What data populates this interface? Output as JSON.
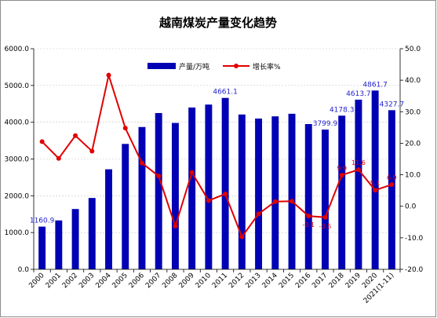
{
  "chart_data": {
    "type": "bar",
    "title": "越南煤炭产量变化趋势",
    "categories": [
      "2000",
      "2001",
      "2002",
      "2003",
      "2004",
      "2005",
      "2006",
      "2007",
      "2008",
      "2009",
      "2010",
      "2011",
      "2012",
      "2013",
      "2014",
      "2015",
      "2016",
      "2017",
      "2018",
      "2019",
      "2020",
      "2021(1-11)"
    ],
    "series": [
      {
        "name": "产量/万吨",
        "type": "bar",
        "axis": "left",
        "color": "#0000b4",
        "values": [
          1160.9,
          1330,
          1640,
          1940,
          2720,
          3410,
          3870,
          4250,
          3980,
          4400,
          4480,
          4661.1,
          4210,
          4100,
          4160,
          4230,
          3950,
          3799.9,
          4178.3,
          4613.7,
          4861.7,
          4327.7
        ]
      },
      {
        "name": "增长率%",
        "type": "line",
        "axis": "right",
        "color": "#e00000",
        "values": [
          20.5,
          15.2,
          22.4,
          17.5,
          41.6,
          24.8,
          13.7,
          9.6,
          -6.3,
          10.7,
          1.8,
          3.9,
          -9.7,
          -2.4,
          1.5,
          1.6,
          -3.1,
          -3.5,
          9.9,
          11.6,
          5.1,
          6.9
        ]
      }
    ],
    "bar_labels": [
      {
        "index": 0,
        "text": "1160.9"
      },
      {
        "index": 11,
        "text": "4661.1"
      },
      {
        "index": 17,
        "text": "3799.9"
      },
      {
        "index": 18,
        "text": "4178.3"
      },
      {
        "index": 19,
        "text": "4613.7"
      },
      {
        "index": 20,
        "text": "4861.7"
      },
      {
        "index": 21,
        "text": "4327.7"
      }
    ],
    "rate_labels": [
      {
        "index": 16,
        "text": "-3.1"
      },
      {
        "index": 17,
        "text": "-3.5"
      },
      {
        "index": 18,
        "text": "9.9"
      },
      {
        "index": 19,
        "text": "11.6"
      },
      {
        "index": 20,
        "text": "5.1"
      },
      {
        "index": 21,
        "text": "6.9"
      }
    ],
    "y_left": {
      "min": 0,
      "max": 6000,
      "ticks": [
        "0.0",
        "1000.0",
        "2000.0",
        "3000.0",
        "4000.0",
        "5000.0",
        "6000.0"
      ]
    },
    "y_right": {
      "min": -20,
      "max": 50,
      "ticks": [
        "-20.0",
        "-10.0",
        "0.0",
        "10.0",
        "20.0",
        "30.0",
        "40.0",
        "50.0"
      ]
    },
    "grid": true,
    "legend_position": "top-center"
  }
}
